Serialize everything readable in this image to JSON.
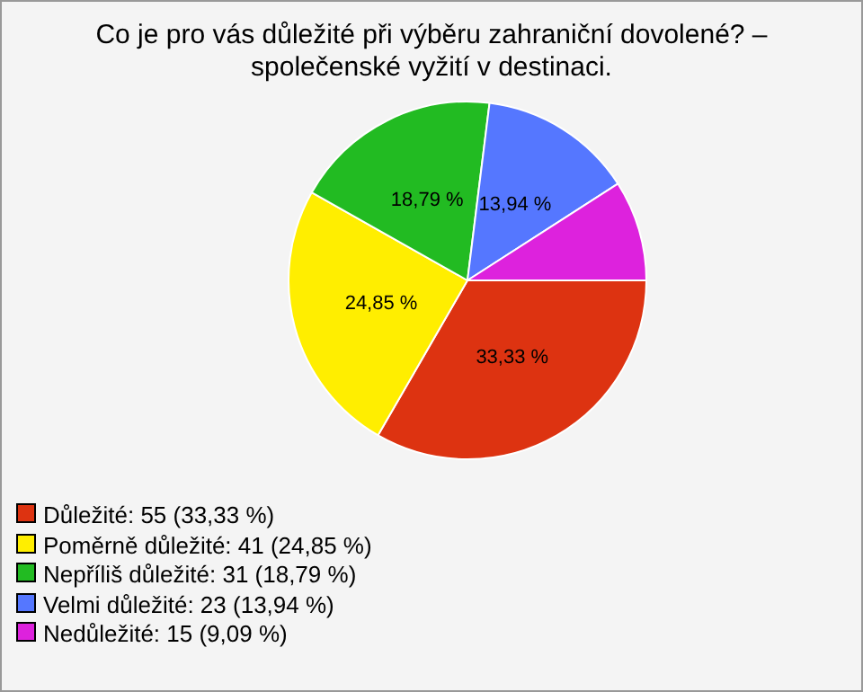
{
  "chart_data": {
    "type": "pie",
    "title": "Co je pro vás důležité při výběru zahraniční dovolené? – společenské vyžití v destinaci.",
    "categories": [
      "Důležité: 55 (33,33 %)",
      "Poměrně důležité: 41 (24,85 %)",
      "Nepříliš důležité: 31 (18,79 %)",
      "Velmi důležité: 23 (13,94 %)",
      "Nedůležité: 15 (9,09 %)"
    ],
    "values": [
      33.33,
      24.85,
      18.79,
      13.94,
      9.09
    ],
    "value_labels": [
      "33,33 %",
      "24,85 %",
      "18,79 %",
      "13,94 %",
      null
    ],
    "colors": [
      "#dd3311",
      "#ffee00",
      "#22bb22",
      "#5577ff",
      "#dd22dd"
    ],
    "legend": "bottom left"
  }
}
